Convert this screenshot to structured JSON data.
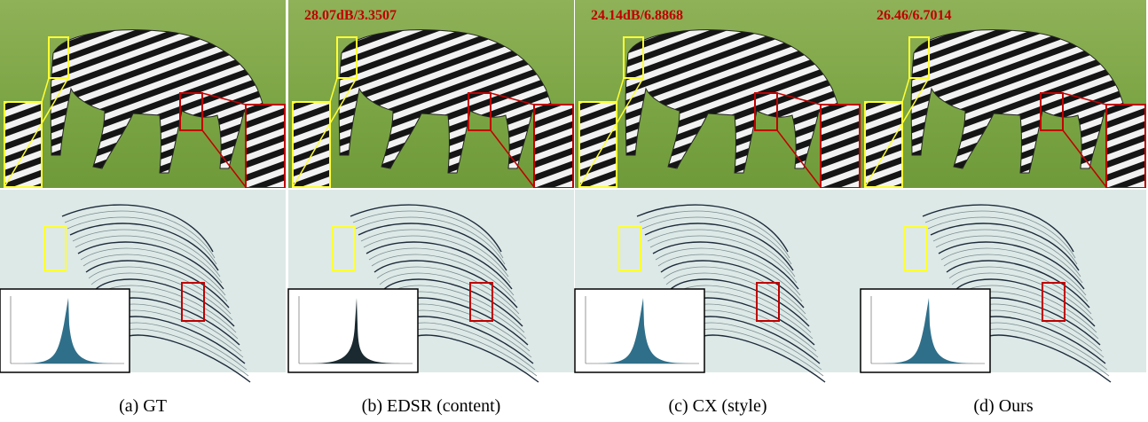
{
  "panels": [
    {
      "caption": "(a) GT"
    },
    {
      "caption": "(b) EDSR (content)",
      "metric": "28.07dB/3.3507"
    },
    {
      "caption": "(c) CX (style)",
      "metric": "24.14dB/6.8868"
    },
    {
      "caption": "(d) Ours",
      "metric": "26.46/6.7014"
    }
  ]
}
